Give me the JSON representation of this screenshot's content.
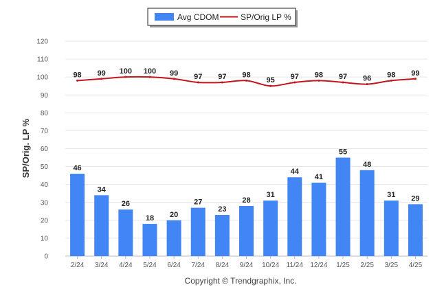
{
  "chart_data": {
    "type": "bar",
    "categories": [
      "2/24",
      "3/24",
      "4/24",
      "5/24",
      "6/24",
      "7/24",
      "8/24",
      "9/24",
      "10/24",
      "11/24",
      "12/24",
      "1/25",
      "2/25",
      "3/25",
      "4/25"
    ],
    "series": [
      {
        "name": "Avg CDOM",
        "kind": "bar",
        "color": "#4285f4",
        "values": [
          46,
          34,
          26,
          18,
          20,
          27,
          23,
          28,
          31,
          44,
          41,
          55,
          48,
          31,
          29
        ]
      },
      {
        "name": "SP/Orig LP %",
        "kind": "line",
        "color": "#c0161c",
        "values": [
          98,
          99,
          100,
          100,
          99,
          97,
          97,
          98,
          95,
          97,
          98,
          97,
          96,
          98,
          99
        ]
      }
    ],
    "xlabel": "",
    "ylabel": "SP/Orig. LP %",
    "ylim": [
      0,
      120
    ],
    "yticks": [
      0,
      10,
      20,
      30,
      40,
      50,
      60,
      70,
      80,
      90,
      100,
      110,
      120
    ],
    "grid": true,
    "legend": "top-center"
  },
  "footer": {
    "copyright": "Copyright © Trendgraphix, Inc."
  }
}
